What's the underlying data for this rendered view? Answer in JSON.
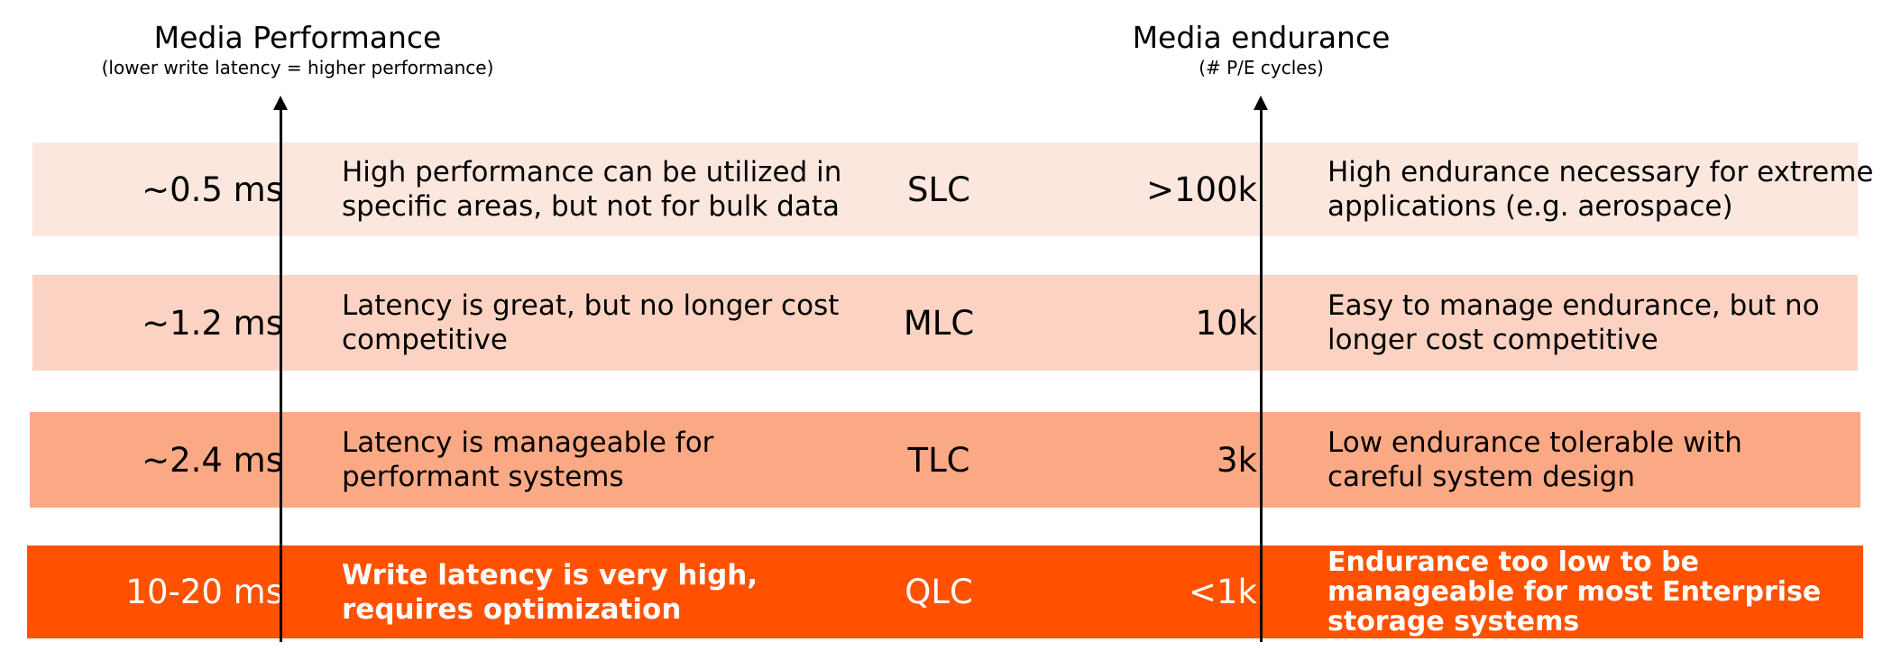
{
  "left_header": {
    "title": "Media Performance",
    "subtitle": "(lower write latency = higher performance)"
  },
  "right_header": {
    "title": "Media endurance",
    "subtitle": "(# P/E cycles)"
  },
  "rows": [
    {
      "latency": "~0.5 ms",
      "performance_note": [
        "High performance can be utilized in",
        "specific areas, but not for bulk data"
      ],
      "cell_type": "SLC",
      "endurance": ">100k",
      "endurance_note": [
        "High endurance necessary for extreme",
        "applications (e.g. aerospace)"
      ],
      "color": "#FCE7DE"
    },
    {
      "latency": "~1.2 ms",
      "performance_note": [
        "Latency is great, but no longer cost",
        "competitive"
      ],
      "cell_type": "MLC",
      "endurance": "10k",
      "endurance_note": [
        "Easy to manage endurance, but no",
        "longer cost competitive"
      ],
      "color": "#FCD3C2"
    },
    {
      "latency": "~2.4 ms",
      "performance_note": [
        "Latency is manageable for",
        "performant systems"
      ],
      "cell_type": "TLC",
      "endurance": "3k",
      "endurance_note": [
        "Low endurance tolerable with",
        "careful system design"
      ],
      "color": "#FBA985"
    },
    {
      "latency": "10-20 ms",
      "performance_note": [
        "Write latency is very high,",
        "requires optimization"
      ],
      "cell_type": "QLC",
      "endurance": "<1k",
      "endurance_note": [
        "Endurance too low to be",
        "manageable for most Enterprise",
        "storage systems"
      ],
      "color": "#FF5100"
    }
  ]
}
